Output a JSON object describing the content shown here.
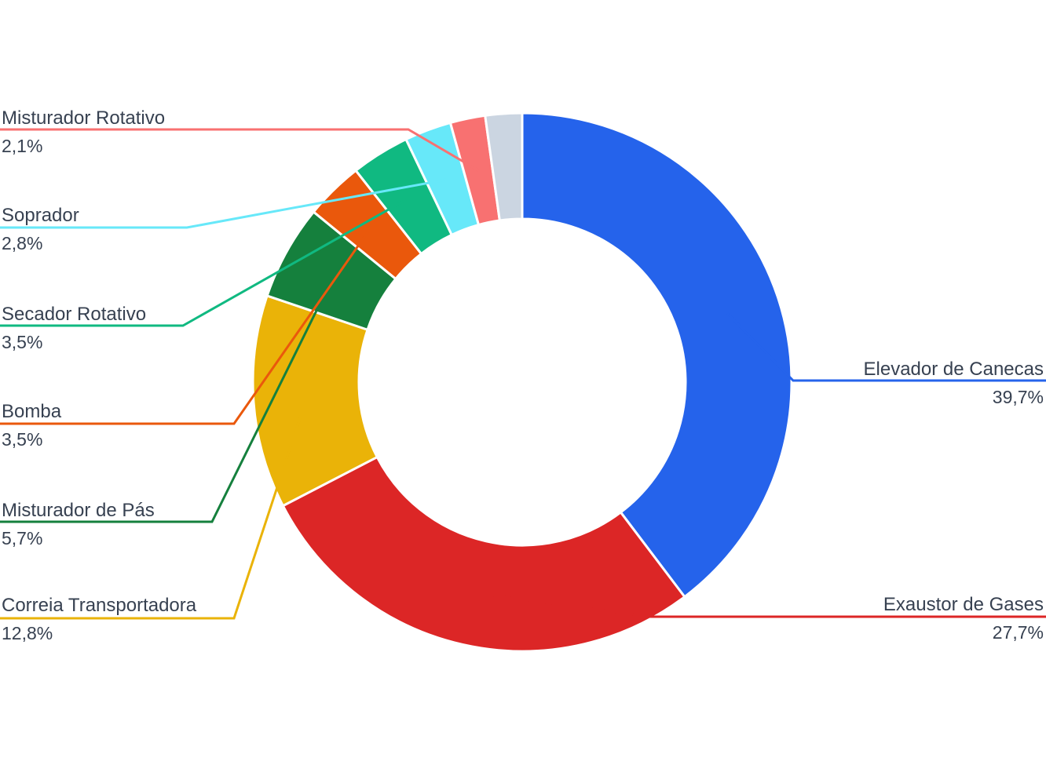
{
  "chart_data": {
    "type": "pie",
    "variant": "donut",
    "slices": [
      {
        "name": "Elevador de Canecas",
        "value": 39.7,
        "label": "39,7%",
        "color": "#2563eb"
      },
      {
        "name": "Exaustor de Gases",
        "value": 27.7,
        "label": "27,7%",
        "color": "#dc2626"
      },
      {
        "name": "Correia Transportadora",
        "value": 12.8,
        "label": "12,8%",
        "color": "#eab308"
      },
      {
        "name": "Misturador de Pás",
        "value": 5.7,
        "label": "5,7%",
        "color": "#15803d"
      },
      {
        "name": "Bomba",
        "value": 3.5,
        "label": "3,5%",
        "color": "#ea580c"
      },
      {
        "name": "Secador Rotativo",
        "value": 3.5,
        "label": "3,5%",
        "color": "#10b981"
      },
      {
        "name": "Soprador",
        "value": 2.8,
        "label": "2,8%",
        "color": "#67e8f9"
      },
      {
        "name": "Misturador Rotativo",
        "value": 2.1,
        "label": "2,1%",
        "color": "#f87171"
      },
      {
        "name": "",
        "value": 2.2,
        "label": "",
        "color": "#cbd5e1"
      }
    ],
    "legend": "callout labels"
  }
}
